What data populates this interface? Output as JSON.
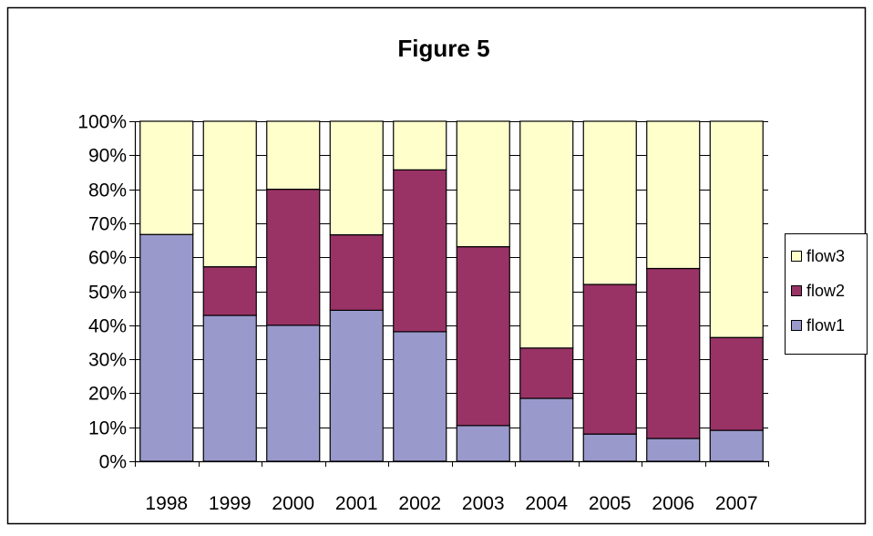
{
  "chart_data": {
    "type": "bar",
    "stacked": true,
    "normalized": true,
    "title": "Figure 5",
    "xlabel": "",
    "ylabel": "",
    "ylim": [
      0,
      100
    ],
    "yticks": [
      "0%",
      "10%",
      "20%",
      "30%",
      "40%",
      "50%",
      "60%",
      "70%",
      "80%",
      "90%",
      "100%"
    ],
    "categories": [
      "1998",
      "1999",
      "2000",
      "2001",
      "2002",
      "2003",
      "2004",
      "2005",
      "2006",
      "2007"
    ],
    "series": [
      {
        "name": "flow1",
        "color": "#9999cc",
        "values": [
          66.7,
          42.9,
          40.0,
          44.4,
          38.1,
          10.5,
          18.5,
          8.0,
          6.7,
          9.1
        ]
      },
      {
        "name": "flow2",
        "color": "#993366",
        "values": [
          0.0,
          14.3,
          40.0,
          22.2,
          47.6,
          52.6,
          14.8,
          44.0,
          50.0,
          27.3
        ]
      },
      {
        "name": "flow3",
        "color": "#ffffcc",
        "values": [
          33.3,
          42.8,
          20.0,
          33.4,
          14.3,
          36.9,
          66.7,
          48.0,
          43.3,
          63.6
        ]
      }
    ],
    "legend": {
      "position": "right",
      "order": [
        "flow3",
        "flow2",
        "flow1"
      ]
    },
    "grid": true
  }
}
